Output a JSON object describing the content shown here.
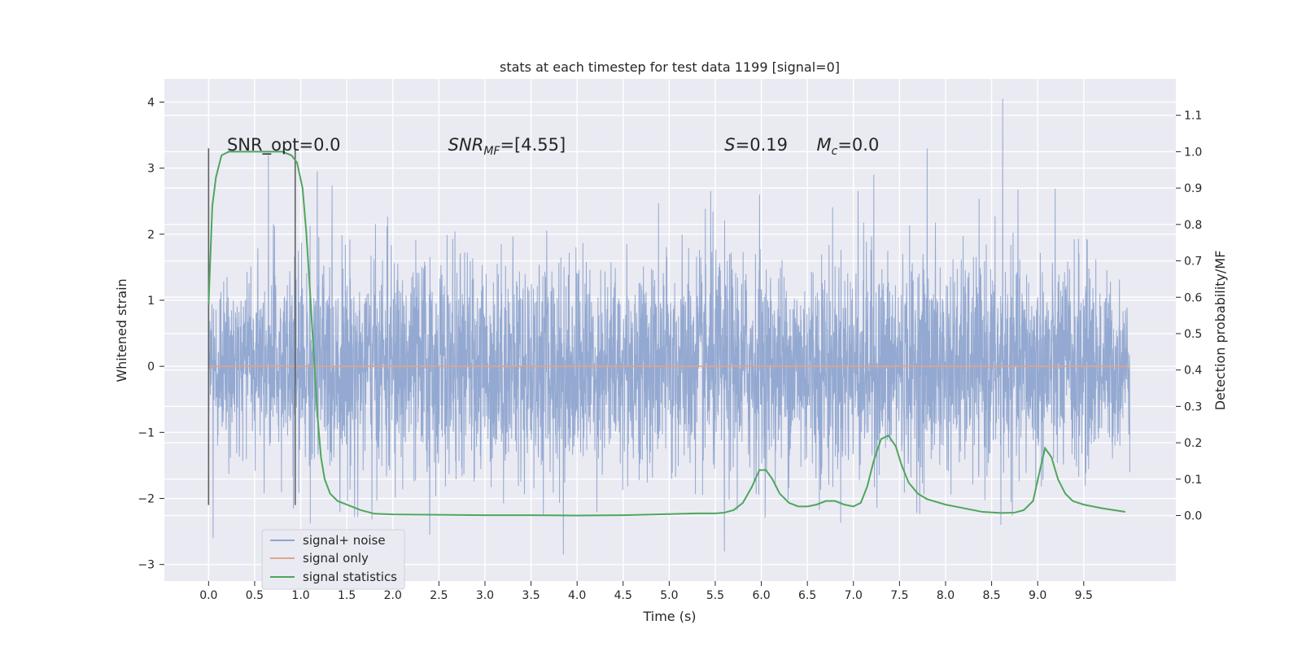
{
  "chart_data": {
    "type": "line",
    "title": "stats at each timestep for test data 1199 [signal=0]",
    "xlabel": "Time (s)",
    "ylabel": "Whitened strain",
    "y2label": "Detection probability/MF",
    "xlim": [
      -0.48,
      10.5
    ],
    "ylim": [
      -3.25,
      4.35
    ],
    "y2lim": [
      -0.18,
      1.2
    ],
    "x_ticks": [
      0.0,
      0.5,
      1.0,
      1.5,
      2.0,
      2.5,
      3.0,
      3.5,
      4.0,
      4.5,
      5.0,
      5.5,
      6.0,
      6.5,
      7.0,
      7.5,
      8.0,
      8.5,
      9.0,
      9.5
    ],
    "x_tick_labels": [
      "0.0",
      "0.5",
      "1.0",
      "1.5",
      "2.0",
      "2.5",
      "3.0",
      "3.5",
      "4.0",
      "4.5",
      "5.0",
      "5.5",
      "6.0",
      "6.5",
      "7.0",
      "7.5",
      "8.0",
      "8.5",
      "9.0",
      "9.5"
    ],
    "y_ticks": [
      -3,
      -2,
      -1,
      0,
      1,
      2,
      3,
      4
    ],
    "y_tick_labels": [
      "−3",
      "−2",
      "−1",
      "0",
      "1",
      "2",
      "3",
      "4"
    ],
    "y2_ticks": [
      0.0,
      0.1,
      0.2,
      0.3,
      0.4,
      0.5,
      0.6,
      0.7,
      0.8,
      0.9,
      1.0,
      1.1
    ],
    "y2_tick_labels": [
      "0.0",
      "0.1",
      "0.2",
      "0.3",
      "0.4",
      "0.5",
      "0.6",
      "0.7",
      "0.8",
      "0.9",
      "1.0",
      "1.1"
    ],
    "grid": true,
    "legend_position": "lower-left",
    "series": [
      {
        "name": "signal+ noise",
        "axis": "left",
        "color": "#8fa5cf",
        "x_range": [
          0.0,
          10.0
        ],
        "envelope_upper": [
          1.5,
          1.9,
          2.2,
          2.3,
          2.1,
          2.4,
          2.0,
          2.2,
          2.3,
          2.0,
          2.1,
          2.3,
          2.2,
          2.0,
          2.4,
          2.1,
          2.3,
          2.0,
          2.2,
          2.3,
          2.1,
          1.2
        ],
        "envelope_lower": [
          -1.0,
          -1.9,
          -2.1,
          -2.0,
          -2.2,
          -1.9,
          -2.0,
          -2.1,
          -2.0,
          -1.9,
          -2.1,
          -2.0,
          -2.2,
          -1.9,
          -2.1,
          -2.0,
          -1.9,
          -2.1,
          -2.0,
          -1.9,
          -2.1,
          -1.5
        ],
        "peaks": [
          {
            "x": 0.65,
            "y": 3.2
          },
          {
            "x": 1.18,
            "y": 2.95
          },
          {
            "x": 5.45,
            "y": 2.65
          },
          {
            "x": 5.98,
            "y": 2.6
          },
          {
            "x": 7.05,
            "y": 2.65
          },
          {
            "x": 7.22,
            "y": 2.9
          },
          {
            "x": 7.8,
            "y": 3.3
          },
          {
            "x": 8.62,
            "y": 4.05
          },
          {
            "x": 0.05,
            "y": -2.6
          },
          {
            "x": 0.92,
            "y": -2.15
          },
          {
            "x": 2.4,
            "y": -2.55
          },
          {
            "x": 3.85,
            "y": -2.85
          },
          {
            "x": 5.6,
            "y": -2.8
          },
          {
            "x": 8.6,
            "y": -2.4
          }
        ]
      },
      {
        "name": "signal only",
        "axis": "left",
        "color": "#e0a48a",
        "x": [
          0.0,
          10.0
        ],
        "y": [
          0.0,
          0.0
        ]
      },
      {
        "name": "signal statistics",
        "axis": "right",
        "color": "#4ea65e",
        "x": [
          0.0,
          0.04,
          0.08,
          0.14,
          0.22,
          0.35,
          0.5,
          0.65,
          0.8,
          0.9,
          0.96,
          1.02,
          1.06,
          1.1,
          1.14,
          1.18,
          1.22,
          1.26,
          1.32,
          1.4,
          1.5,
          1.65,
          1.8,
          2.0,
          2.5,
          3.0,
          3.5,
          4.0,
          4.5,
          5.0,
          5.3,
          5.5,
          5.6,
          5.7,
          5.8,
          5.9,
          5.98,
          6.05,
          6.12,
          6.2,
          6.3,
          6.4,
          6.5,
          6.6,
          6.7,
          6.8,
          6.9,
          7.0,
          7.08,
          7.15,
          7.22,
          7.3,
          7.38,
          7.46,
          7.52,
          7.6,
          7.7,
          7.8,
          8.0,
          8.2,
          8.4,
          8.6,
          8.75,
          8.85,
          8.95,
          9.02,
          9.08,
          9.15,
          9.22,
          9.3,
          9.38,
          9.5,
          9.7,
          9.95
        ],
        "y": [
          0.58,
          0.85,
          0.93,
          0.99,
          1.0,
          1.0,
          1.0,
          1.0,
          1.0,
          0.99,
          0.97,
          0.9,
          0.78,
          0.62,
          0.45,
          0.28,
          0.16,
          0.1,
          0.06,
          0.04,
          0.03,
          0.015,
          0.005,
          0.003,
          0.002,
          0.001,
          0.001,
          0.0,
          0.001,
          0.004,
          0.006,
          0.006,
          0.008,
          0.015,
          0.035,
          0.08,
          0.125,
          0.125,
          0.1,
          0.06,
          0.035,
          0.025,
          0.025,
          0.03,
          0.04,
          0.04,
          0.03,
          0.025,
          0.035,
          0.08,
          0.15,
          0.21,
          0.22,
          0.19,
          0.14,
          0.09,
          0.06,
          0.045,
          0.03,
          0.02,
          0.01,
          0.007,
          0.008,
          0.015,
          0.04,
          0.12,
          0.185,
          0.16,
          0.1,
          0.06,
          0.04,
          0.03,
          0.02,
          0.01
        ]
      }
    ],
    "vertical_lines": [
      {
        "x": 0.0,
        "y_from": -2.1,
        "y_to": 3.3,
        "color": "#606060"
      },
      {
        "x": 0.94,
        "y_from": -2.1,
        "y_to": 3.3,
        "color": "#606060"
      }
    ],
    "annotations": [
      {
        "label": "SNR_opt=0.0",
        "x": 0.2
      },
      {
        "label": "SNR",
        "sub": "MF",
        "suffix": "=[4.55]",
        "x": 2.6
      },
      {
        "label": "S",
        "suffix": "=0.19",
        "x": 5.6
      },
      {
        "label": "M",
        "sub": "c",
        "suffix": "=0.0",
        "x": 6.6
      }
    ]
  }
}
